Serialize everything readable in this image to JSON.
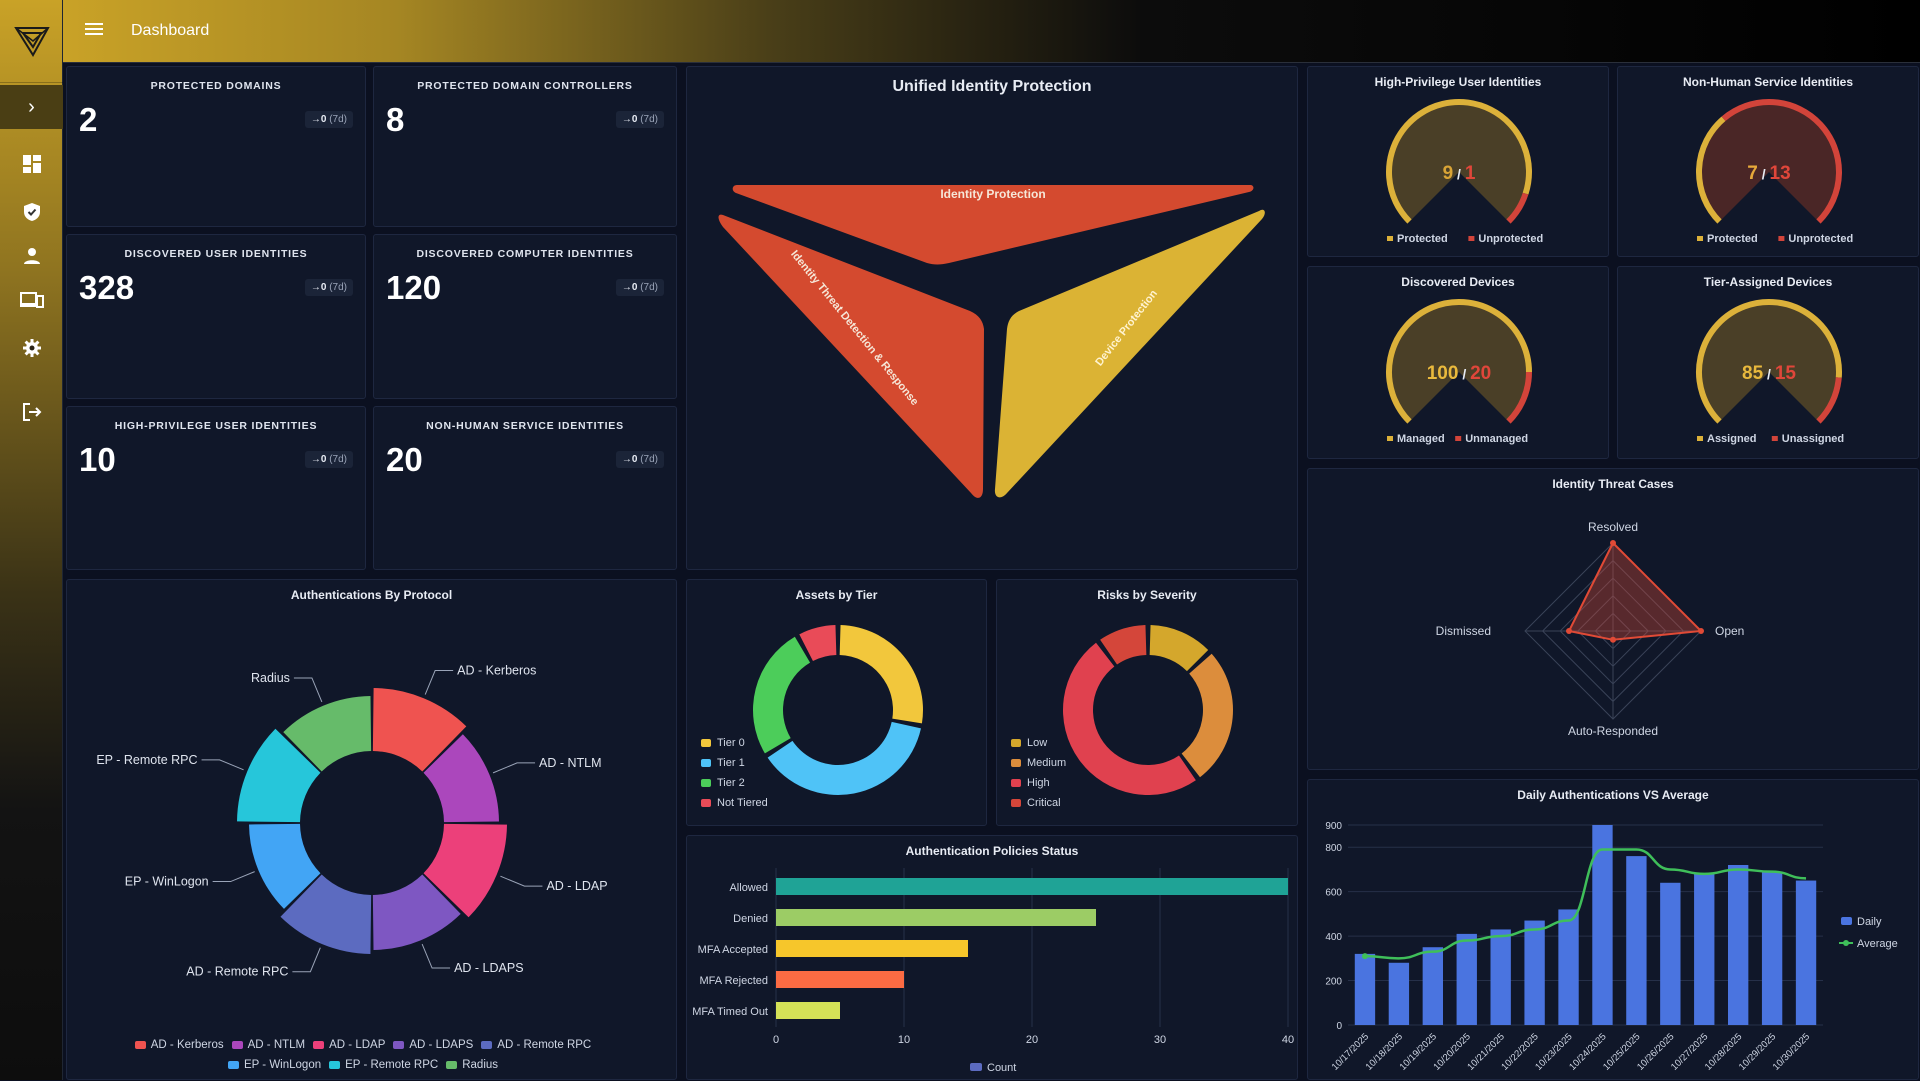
{
  "app": {
    "page_title": "Dashboard"
  },
  "sidebar": {
    "items": [
      {
        "icon": "dashboard-icon"
      },
      {
        "icon": "shield-icon"
      },
      {
        "icon": "user-icon"
      },
      {
        "icon": "devices-icon"
      },
      {
        "icon": "gear-icon"
      },
      {
        "icon": "logout-icon"
      }
    ]
  },
  "kpis": [
    {
      "title": "PROTECTED DOMAINS",
      "value": "2",
      "trend": "→0",
      "period": "(7d)"
    },
    {
      "title": "PROTECTED DOMAIN CONTROLLERS",
      "value": "8",
      "trend": "→0",
      "period": "(7d)"
    },
    {
      "title": "DISCOVERED USER IDENTITIES",
      "value": "328",
      "trend": "→0",
      "period": "(7d)"
    },
    {
      "title": "DISCOVERED COMPUTER IDENTITIES",
      "value": "120",
      "trend": "→0",
      "period": "(7d)"
    },
    {
      "title": "HIGH-PRIVILEGE USER IDENTITIES",
      "value": "10",
      "trend": "→0",
      "period": "(7d)"
    },
    {
      "title": "NON-HUMAN SERVICE IDENTITIES",
      "value": "20",
      "trend": "→0",
      "period": "(7d)"
    }
  ],
  "unified": {
    "title": "Unified Identity Protection",
    "segments": [
      "Identity Protection",
      "Identity Threat Detection & Response",
      "Device Protection"
    ],
    "colors": {
      "red": "#d44a2f",
      "yellow": "#dbb334"
    }
  },
  "gauges": [
    {
      "title": "High-Privilege User Identities",
      "a": 9,
      "b": 1,
      "la": "Protected",
      "lb": "Unprotected",
      "fill": "#4a3f27",
      "accent": "#d9a436",
      "ring": "#dcb13a",
      "ringB": "#d2443a"
    },
    {
      "title": "Non-Human Service Identities",
      "a": 7,
      "b": 13,
      "la": "Protected",
      "lb": "Unprotected",
      "fill": "#4a2626",
      "accent": "#e7a93a",
      "ring": "#dcb13a",
      "ringB": "#d2443a"
    },
    {
      "title": "Discovered Devices",
      "a": 100,
      "b": 20,
      "la": "Managed",
      "lb": "Unmanaged",
      "fill": "#4a3f27",
      "accent": "#e9b93d",
      "ring": "#dcb13a",
      "ringB": "#d2443a"
    },
    {
      "title": "Tier-Assigned Devices",
      "a": 85,
      "b": 15,
      "la": "Assigned",
      "lb": "Unassigned",
      "fill": "#4a3f27",
      "accent": "#e9b93d",
      "ring": "#dcb13a",
      "ringB": "#d2443a"
    }
  ],
  "threat_cases": {
    "title": "Identity Threat Cases",
    "axes": [
      "Resolved",
      "Open",
      "Auto-Responded",
      "Dismissed"
    ]
  },
  "chart_data": [
    {
      "type": "pie",
      "title": "Authentications By Protocol",
      "categories": [
        "AD - Kerberos",
        "AD - NTLM",
        "AD - LDAP",
        "AD - LDAPS",
        "AD - Remote RPC",
        "EP - WinLogon",
        "EP - Remote RPC",
        "Radius"
      ],
      "values": [
        1,
        1,
        1,
        1,
        1,
        1,
        1,
        1
      ],
      "colors": [
        "#ef5350",
        "#ab47bc",
        "#ec407a",
        "#7e57c2",
        "#5c6bc0",
        "#42a5f5",
        "#26c6da",
        "#66bb6a"
      ]
    },
    {
      "type": "pie",
      "title": "Assets by Tier",
      "categories": [
        "Tier 0",
        "Tier 1",
        "Tier 2",
        "Not Tiered"
      ],
      "values": [
        28,
        38,
        26,
        8
      ],
      "colors": [
        "#f2c73c",
        "#4fc3f7",
        "#4ccd5a",
        "#e94b58"
      ]
    },
    {
      "type": "pie",
      "title": "Risks by Severity",
      "categories": [
        "Low",
        "Medium",
        "High",
        "Critical"
      ],
      "values": [
        13,
        27,
        50,
        10
      ],
      "colors": [
        "#d4a72c",
        "#dc8d3c",
        "#e0414f",
        "#d4463a"
      ]
    },
    {
      "type": "bar",
      "title": "Authentication Policies Status",
      "categories": [
        "Allowed",
        "Denied",
        "MFA Accepted",
        "MFA Rejected",
        "MFA Timed Out"
      ],
      "values": [
        40,
        25,
        15,
        10,
        5
      ],
      "colors": [
        "#1fa396",
        "#9ccc65",
        "#f6c62b",
        "#fb6b43",
        "#d4e157"
      ],
      "xlim": [
        0,
        40
      ],
      "xticks": [
        0,
        10,
        20,
        30,
        40
      ],
      "legend": "Count"
    },
    {
      "type": "bar",
      "title": "Daily Authentications VS Average",
      "categories": [
        "10/17/2025",
        "10/18/2025",
        "10/19/2025",
        "10/20/2025",
        "10/21/2025",
        "10/22/2025",
        "10/23/2025",
        "10/24/2025",
        "10/25/2025",
        "10/26/2025",
        "10/27/2025",
        "10/28/2025",
        "10/29/2025",
        "10/30/2025"
      ],
      "series": [
        {
          "name": "Daily",
          "type": "bar",
          "color": "#4a74e0",
          "values": [
            320,
            280,
            350,
            410,
            430,
            470,
            520,
            900,
            760,
            640,
            680,
            720,
            690,
            650
          ]
        },
        {
          "name": "Average",
          "type": "line",
          "color": "#3fbf5a",
          "values": [
            310,
            300,
            330,
            380,
            400,
            430,
            470,
            790,
            790,
            700,
            680,
            700,
            690,
            660
          ]
        }
      ],
      "ylim": [
        0,
        900
      ],
      "yticks": [
        0,
        200,
        400,
        600,
        800,
        900
      ]
    },
    {
      "type": "radar",
      "title": "Identity Threat Cases",
      "categories": [
        "Resolved",
        "Open",
        "Auto-Responded",
        "Dismissed"
      ],
      "values": [
        1,
        1,
        0.1,
        0.5
      ],
      "color": "#e04a36"
    }
  ]
}
